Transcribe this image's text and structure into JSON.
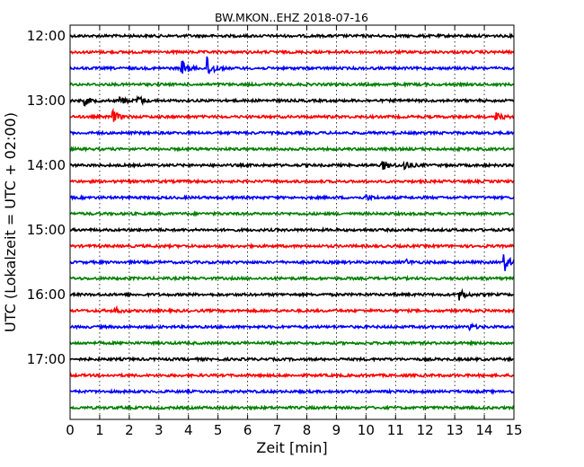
{
  "chart_data": {
    "type": "line",
    "title": "BW.MKON..EHZ 2018-07-16",
    "xlabel": "Zeit  [min]",
    "ylabel": "UTC (Lokalzeit = UTC + 02:00)",
    "xlim": [
      0,
      15
    ],
    "x_ticks": [
      0,
      1,
      2,
      3,
      4,
      5,
      6,
      7,
      8,
      9,
      10,
      11,
      12,
      13,
      14,
      15
    ],
    "y_ticks": [
      "12:00",
      "13:00",
      "14:00",
      "15:00",
      "16:00",
      "17:00"
    ],
    "grid": "vertical-dotted",
    "trace_interval_min": 15,
    "traces": [
      {
        "start": "12:00",
        "color": "#000000",
        "events": []
      },
      {
        "start": "12:15",
        "color": "#ff0000",
        "events": []
      },
      {
        "start": "12:30",
        "color": "#0000ff",
        "events": [
          {
            "t": 3.8,
            "amp": 0.35
          },
          {
            "t": 4.65,
            "amp": 0.55
          }
        ]
      },
      {
        "start": "12:45",
        "color": "#008000",
        "events": []
      },
      {
        "start": "13:00",
        "color": "#000000",
        "events": [
          {
            "t": 0.5,
            "amp": 0.2
          },
          {
            "t": 1.7,
            "amp": 0.2
          },
          {
            "t": 2.3,
            "amp": 0.25
          }
        ]
      },
      {
        "start": "13:15",
        "color": "#ff0000",
        "events": [
          {
            "t": 1.45,
            "amp": 0.3
          },
          {
            "t": 14.4,
            "amp": 0.2
          }
        ]
      },
      {
        "start": "13:30",
        "color": "#0000ff",
        "events": []
      },
      {
        "start": "13:45",
        "color": "#008000",
        "events": []
      },
      {
        "start": "14:00",
        "color": "#000000",
        "events": [
          {
            "t": 10.6,
            "amp": 0.2
          },
          {
            "t": 11.3,
            "amp": 0.25
          }
        ]
      },
      {
        "start": "14:15",
        "color": "#ff0000",
        "events": []
      },
      {
        "start": "14:30",
        "color": "#0000ff",
        "events": [
          {
            "t": 10.0,
            "amp": 0.15
          }
        ]
      },
      {
        "start": "14:45",
        "color": "#008000",
        "events": []
      },
      {
        "start": "15:00",
        "color": "#000000",
        "events": []
      },
      {
        "start": "15:15",
        "color": "#ff0000",
        "events": []
      },
      {
        "start": "15:30",
        "color": "#0000ff",
        "events": [
          {
            "t": 11.3,
            "amp": 0.15
          },
          {
            "t": 14.7,
            "amp": 0.4
          }
        ]
      },
      {
        "start": "15:45",
        "color": "#008000",
        "events": []
      },
      {
        "start": "16:00",
        "color": "#000000",
        "events": [
          {
            "t": 13.2,
            "amp": 0.25
          }
        ]
      },
      {
        "start": "16:15",
        "color": "#ff0000",
        "events": [
          {
            "t": 1.45,
            "amp": 0.2
          }
        ]
      },
      {
        "start": "16:30",
        "color": "#0000ff",
        "events": [
          {
            "t": 13.5,
            "amp": 0.15
          }
        ]
      },
      {
        "start": "16:45",
        "color": "#008000",
        "events": []
      },
      {
        "start": "17:00",
        "color": "#000000",
        "events": []
      },
      {
        "start": "17:15",
        "color": "#ff0000",
        "events": []
      },
      {
        "start": "17:30",
        "color": "#0000ff",
        "events": []
      },
      {
        "start": "17:45",
        "color": "#008000",
        "events": []
      }
    ]
  }
}
